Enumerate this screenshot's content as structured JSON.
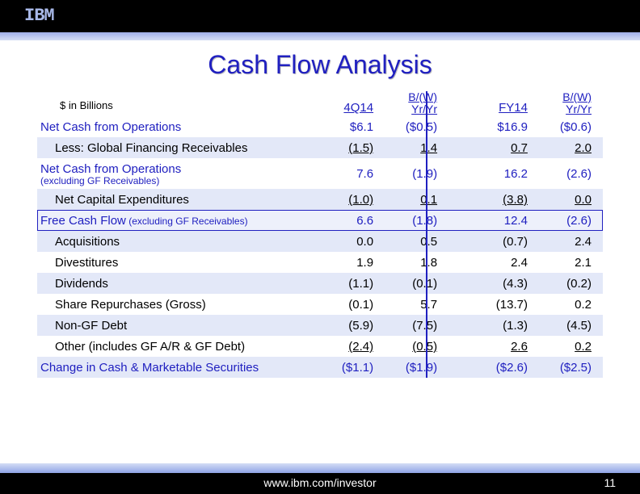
{
  "brand": "IBM",
  "title": "Cash Flow Analysis",
  "units": "$ in Billions",
  "footer_url": "www.ibm.com/investor",
  "page_number": "11",
  "columns": {
    "q": "4Q14",
    "q_bw_top": "B/(W)",
    "q_bw_bot": "Yr/Yr",
    "fy": "FY14",
    "fy_bw_top": "B/(W)",
    "fy_bw_bot": "Yr/Yr"
  },
  "rows": [
    {
      "label": "Net Cash from Operations",
      "c1": "$6.1",
      "c2": "($0.5)",
      "c3": "$16.9",
      "c4": "($0.6)",
      "blue": true,
      "shade": false
    },
    {
      "label": "Less: Global Financing Receivables",
      "c1": "(1.5)",
      "c2": "1.4",
      "c3": "0.7",
      "c4": "2.0",
      "indent": true,
      "shade": true,
      "ul": true
    },
    {
      "label": "Net Cash from Operations",
      "sub": "(excluding GF Receivables)",
      "c1": "7.6",
      "c2": "(1.9)",
      "c3": "16.2",
      "c4": "(2.6)",
      "blue": true,
      "tall": true
    },
    {
      "label": "Net Capital Expenditures",
      "c1": "(1.0)",
      "c2": "0.1",
      "c3": "(3.8)",
      "c4": "0.0",
      "indent": true,
      "shade": true,
      "ul": true
    },
    {
      "label": "Free Cash Flow",
      "inline_sub": " (excluding GF Receivables)",
      "c1": "6.6",
      "c2": "(1.8)",
      "c3": "12.4",
      "c4": "(2.6)",
      "blue": true,
      "boxed": true
    },
    {
      "label": "Acquisitions",
      "c1": "0.0",
      "c2": "0.5",
      "c3": "(0.7)",
      "c4": "2.4",
      "indent": true,
      "shade": true
    },
    {
      "label": "Divestitures",
      "c1": "1.9",
      "c2": "1.8",
      "c3": "2.4",
      "c4": "2.1",
      "indent": true
    },
    {
      "label": "Dividends",
      "c1": "(1.1)",
      "c2": "(0.1)",
      "c3": "(4.3)",
      "c4": "(0.2)",
      "indent": true,
      "shade": true
    },
    {
      "label": "Share Repurchases (Gross)",
      "c1": "(0.1)",
      "c2": "5.7",
      "c3": "(13.7)",
      "c4": "0.2",
      "indent": true
    },
    {
      "label": "Non-GF Debt",
      "c1": "(5.9)",
      "c2": "(7.5)",
      "c3": "(1.3)",
      "c4": "(4.5)",
      "indent": true,
      "shade": true
    },
    {
      "label": "Other (includes GF A/R & GF Debt)",
      "c1": "(2.4)",
      "c2": "(0.5)",
      "c3": "2.6",
      "c4": "0.2",
      "indent": true,
      "ul": true
    },
    {
      "label": "Change in Cash & Marketable Securities",
      "c1": "($1.1)",
      "c2": "($1.9)",
      "c3": "($2.6)",
      "c4": "($2.5)",
      "blue": true,
      "shade": true
    }
  ]
}
